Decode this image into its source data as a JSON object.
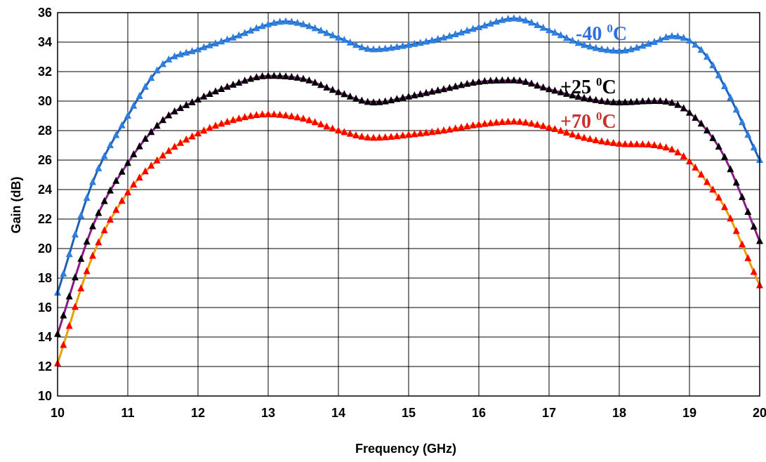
{
  "chart_data": {
    "type": "line",
    "title": "",
    "xlabel": "Frequency (GHz)",
    "ylabel": "Gain (dB)",
    "xlim": [
      10,
      20
    ],
    "ylim": [
      10,
      36
    ],
    "x_ticks": [
      "10",
      "11",
      "12",
      "13",
      "14",
      "15",
      "16",
      "17",
      "18",
      "19",
      "20"
    ],
    "y_ticks": [
      "10",
      "12",
      "14",
      "16",
      "18",
      "20",
      "22",
      "24",
      "26",
      "28",
      "30",
      "32",
      "34",
      "36"
    ],
    "grid": true,
    "series": [
      {
        "name": "-40 ⁰C",
        "label_text": "-40 ",
        "label_sup": "0",
        "label_unit": "C",
        "line_color": "#1f5fb5",
        "marker_color": "#2f7fe0",
        "label_color": "#2f6fdc",
        "points": [
          [
            10,
            17.0
          ],
          [
            10.5,
            24.5
          ],
          [
            11,
            29.0
          ],
          [
            11.5,
            32.5
          ],
          [
            12,
            33.5
          ],
          [
            12.5,
            34.3
          ],
          [
            13,
            35.2
          ],
          [
            13.25,
            35.4
          ],
          [
            13.5,
            35.2
          ],
          [
            14,
            34.3
          ],
          [
            14.5,
            33.5
          ],
          [
            15,
            33.8
          ],
          [
            15.5,
            34.3
          ],
          [
            16,
            35.0
          ],
          [
            16.5,
            35.6
          ],
          [
            17,
            34.8
          ],
          [
            17.5,
            33.8
          ],
          [
            18,
            33.4
          ],
          [
            18.5,
            34.0
          ],
          [
            18.75,
            34.4
          ],
          [
            19,
            34.1
          ],
          [
            19.25,
            33.0
          ],
          [
            19.5,
            31.0
          ],
          [
            20,
            26.0
          ]
        ]
      },
      {
        "name": "+25 ⁰C",
        "label_text": "+25 ",
        "label_sup": "0",
        "label_unit": "C",
        "line_color": "#8a1a8a",
        "marker_color": "#000000",
        "label_color": "#000000",
        "points": [
          [
            10,
            14.2
          ],
          [
            10.5,
            21.5
          ],
          [
            11,
            25.8
          ],
          [
            11.5,
            28.7
          ],
          [
            12,
            30.1
          ],
          [
            12.5,
            31.1
          ],
          [
            13,
            31.7
          ],
          [
            13.5,
            31.5
          ],
          [
            14,
            30.6
          ],
          [
            14.5,
            29.9
          ],
          [
            15,
            30.3
          ],
          [
            15.5,
            30.8
          ],
          [
            16,
            31.3
          ],
          [
            16.5,
            31.4
          ],
          [
            17,
            30.8
          ],
          [
            17.5,
            30.2
          ],
          [
            18,
            29.9
          ],
          [
            18.5,
            30.0
          ],
          [
            18.8,
            29.8
          ],
          [
            19,
            29.2
          ],
          [
            19.25,
            28.0
          ],
          [
            19.5,
            26.2
          ],
          [
            20,
            20.5
          ]
        ]
      },
      {
        "name": "+70 ⁰C",
        "label_text": "+70 ",
        "label_sup": "0",
        "label_unit": "C",
        "line_color": "#e8a000",
        "marker_color": "#ff0000",
        "label_color": "#c8302c",
        "points": [
          [
            10,
            12.2
          ],
          [
            10.5,
            19.5
          ],
          [
            11,
            23.8
          ],
          [
            11.5,
            26.3
          ],
          [
            12,
            27.8
          ],
          [
            12.5,
            28.7
          ],
          [
            13,
            29.1
          ],
          [
            13.5,
            28.8
          ],
          [
            14,
            28.0
          ],
          [
            14.5,
            27.5
          ],
          [
            15,
            27.7
          ],
          [
            15.5,
            28.0
          ],
          [
            16,
            28.4
          ],
          [
            16.5,
            28.6
          ],
          [
            17,
            28.2
          ],
          [
            17.5,
            27.5
          ],
          [
            18,
            27.1
          ],
          [
            18.5,
            27.0
          ],
          [
            18.8,
            26.6
          ],
          [
            19,
            25.9
          ],
          [
            19.25,
            24.5
          ],
          [
            19.5,
            22.8
          ],
          [
            20,
            17.5
          ]
        ]
      }
    ]
  }
}
